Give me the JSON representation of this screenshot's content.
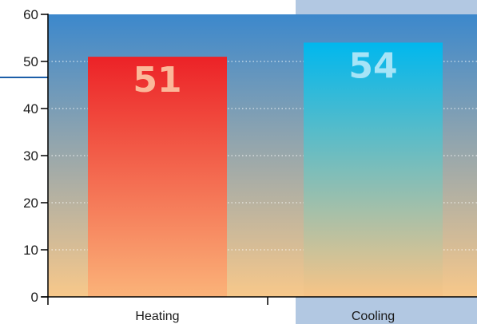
{
  "chart_data": {
    "type": "bar",
    "categories": [
      "Heating",
      "Cooling"
    ],
    "values": [
      51,
      54
    ],
    "data_labels": [
      "51",
      "54"
    ],
    "ylim": [
      0,
      60
    ],
    "yticks": [
      0,
      10,
      20,
      30,
      40,
      50,
      60
    ],
    "ytick_labels": [
      "0",
      "10",
      "20",
      "30",
      "40",
      "50",
      "60"
    ],
    "grid": true,
    "highlighted_category": "Cooling",
    "colors": {
      "heating_top": "#ec2227",
      "heating_bottom": "#fbb379",
      "cooling_top": "#00b7ee",
      "cooling_bottom": "#f8c486",
      "heating_label": "#fbb89a",
      "cooling_label": "#a6e4f7",
      "plot_bg_top": "#3c88cc",
      "plot_bg_bottom": "#f8c88a",
      "highlight_band": "#b2c8e2",
      "axis": "#000000",
      "accent_line": "#1c5ea8"
    }
  }
}
